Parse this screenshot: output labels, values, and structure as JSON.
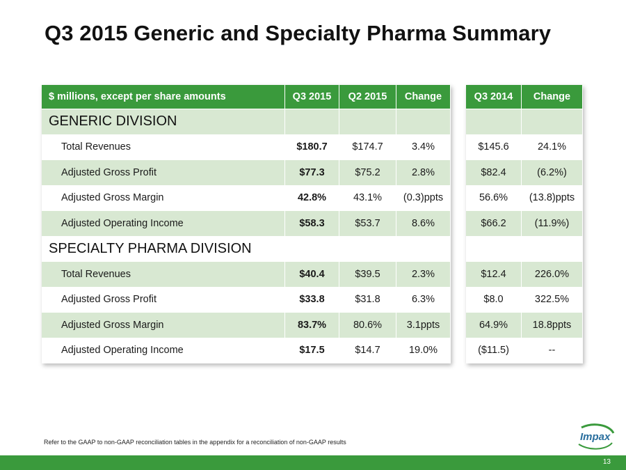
{
  "title": "Q3 2015 Generic and Specialty Pharma Summary",
  "table": {
    "headers": [
      "$ millions, except per share amounts",
      "Q3 2015",
      "Q2 2015",
      "Change",
      "Q3 2014",
      "Change"
    ],
    "generic_division_label": "GENERIC DIVISION",
    "generic_rows": [
      [
        "Total Revenues",
        "$180.7",
        "$174.7",
        "3.4%",
        "$145.6",
        "24.1%"
      ],
      [
        "Adjusted Gross Profit",
        "$77.3",
        "$75.2",
        "2.8%",
        "$82.4",
        "(6.2%)"
      ],
      [
        "Adjusted Gross Margin",
        "42.8%",
        "43.1%",
        "(0.3)ppts",
        "56.6%",
        "(13.8)ppts"
      ],
      [
        "Adjusted Operating Income",
        "$58.3",
        "$53.7",
        "8.6%",
        "$66.2",
        "(11.9%)"
      ]
    ],
    "specialty_division_label": "SPECIALTY PHARMA DIVISION",
    "specialty_rows": [
      [
        "Total Revenues",
        "$40.4",
        "$39.5",
        "2.3%",
        "$12.4",
        "226.0%"
      ],
      [
        "Adjusted Gross Profit",
        "$33.8",
        "$31.8",
        "6.3%",
        "$8.0",
        "322.5%"
      ],
      [
        "Adjusted Gross Margin",
        "83.7%",
        "80.6%",
        "3.1ppts",
        "64.9%",
        "18.8ppts"
      ],
      [
        "Adjusted Operating Income",
        "$17.5",
        "$14.7",
        "19.0%",
        "($11.5)",
        "--"
      ]
    ]
  },
  "footnote": "Refer to the GAAP to non-GAAP reconciliation tables in the appendix for a reconciliation of non-GAAP results",
  "page_number": "13",
  "logo_text": "Impax",
  "colors": {
    "brand_green": "#3a9a3c",
    "row_shade": "#d8e8d2",
    "logo_blue": "#2a6f9e"
  }
}
